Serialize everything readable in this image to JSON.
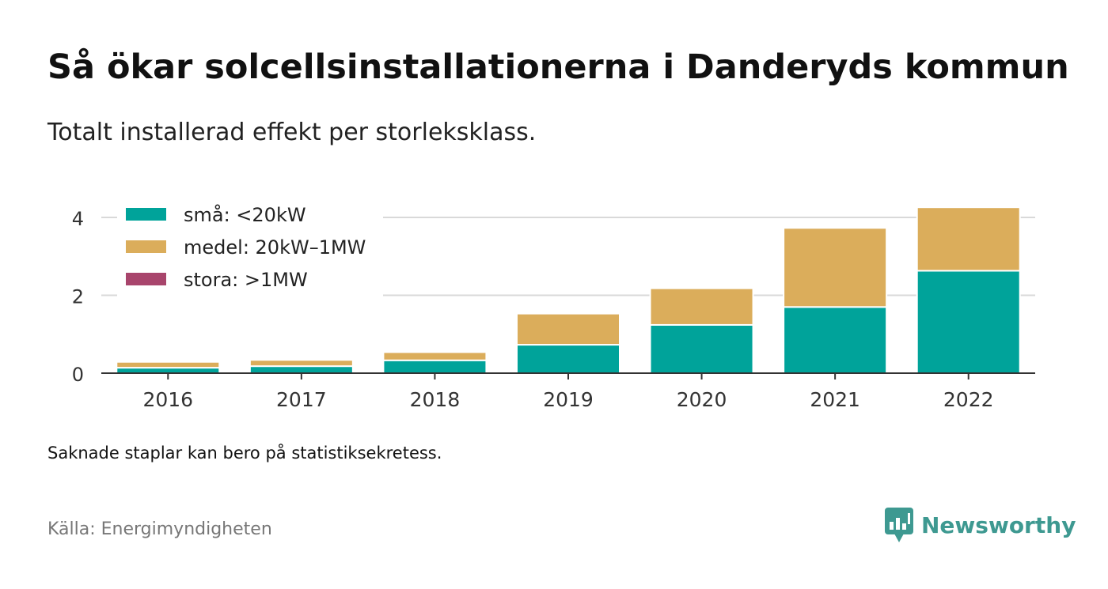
{
  "title": "Så ökar solcellsinstallationerna i Danderyds kommun",
  "subtitle": "Totalt installerad effekt per storleksklass.",
  "note": "Saknade staplar kan bero på statistiksekretess.",
  "source": "Källa: Energimyndigheten",
  "brand": {
    "name": "Newsworthy",
    "icon": "newsworthy-logo-icon",
    "color": "#3e9991"
  },
  "chart_data": {
    "type": "bar",
    "stacked": true,
    "categories": [
      "2016",
      "2017",
      "2018",
      "2019",
      "2020",
      "2021",
      "2022"
    ],
    "series": [
      {
        "name": "små: <20kW",
        "color": "#00a39a",
        "values": [
          0.14,
          0.18,
          0.33,
          0.73,
          1.24,
          1.7,
          2.63
        ]
      },
      {
        "name": "medel: 20kW–1MW",
        "color": "#dbad5b",
        "values": [
          0.15,
          0.16,
          0.21,
          0.8,
          0.94,
          2.03,
          1.63
        ]
      },
      {
        "name": "stora: >1MW",
        "color": "#a8456c",
        "values": [
          0,
          0,
          0,
          0,
          0,
          0,
          0
        ]
      }
    ],
    "ylim": [
      0,
      4.5
    ],
    "yticks": [
      "0",
      "2",
      "4"
    ],
    "grid": true,
    "legend_position": "top-left"
  }
}
